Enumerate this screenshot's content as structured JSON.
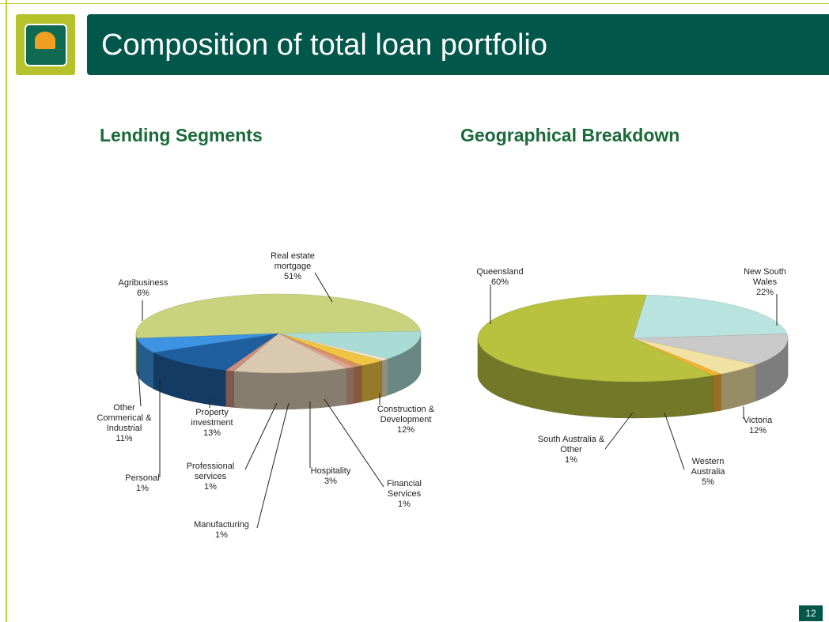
{
  "slide": {
    "title": "Composition of total loan portfolio",
    "page": "12"
  },
  "chart_data": [
    {
      "type": "pie",
      "title": "Lending Segments",
      "categories": [
        "Real estate mortgage",
        "Construction & Development",
        "Financial Services",
        "Hospitality",
        "Manufacturing",
        "Professional services",
        "Property investment",
        "Personal",
        "Other Commerical & Industrial",
        "Agribusiness"
      ],
      "values": [
        51,
        12,
        1,
        3,
        1,
        1,
        13,
        1,
        11,
        6
      ],
      "value_labels": [
        "51%",
        "12%",
        "1%",
        "3%",
        "1%",
        "1%",
        "13%",
        "1%",
        "11%",
        "6%"
      ],
      "colors": [
        "#c9d27c",
        "#a9dcd4",
        "#ece4cc",
        "#f2c443",
        "#d4935f",
        "#e3a28f",
        "#d9c9b1",
        "#c98f7f",
        "#1f5f9f",
        "#3e94e2"
      ]
    },
    {
      "type": "pie",
      "title": "Geographical Breakdown",
      "categories": [
        "New South Wales",
        "Victoria",
        "Western Australia",
        "South Australia & Other",
        "Queensland"
      ],
      "values": [
        22,
        12,
        5,
        1,
        60
      ],
      "value_labels": [
        "22%",
        "12%",
        "5%",
        "1%",
        "60%"
      ],
      "colors": [
        "#b9e3de",
        "#c9c9c9",
        "#f1e2a4",
        "#f2b232",
        "#b8c23f"
      ]
    }
  ]
}
